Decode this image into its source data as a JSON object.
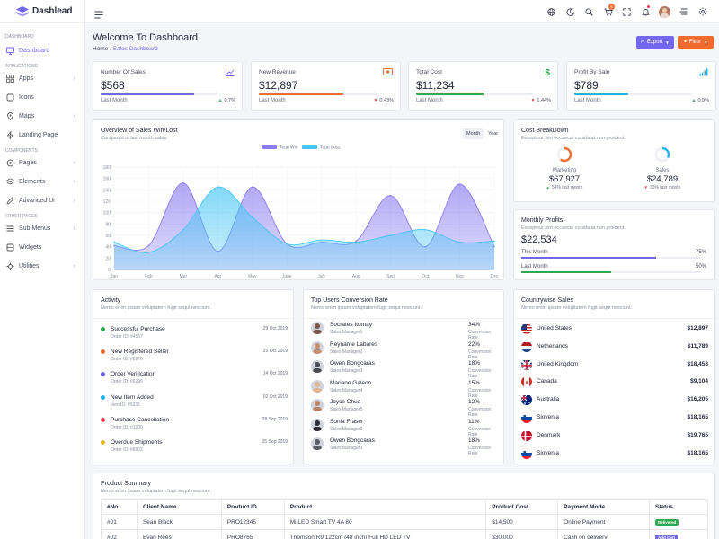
{
  "brand": {
    "name": "Dashlead"
  },
  "sidebar": {
    "sections": [
      "DASHBOARD",
      "APPLICATIONS",
      "COMPONENTS",
      "OTHER PAGES"
    ],
    "items": [
      {
        "label": "Dashboard",
        "icon": "monitor-icon"
      },
      {
        "label": "Apps",
        "icon": "grid-icon"
      },
      {
        "label": "Icons",
        "icon": "box-icon"
      },
      {
        "label": "Maps",
        "icon": "map-pin-icon"
      },
      {
        "label": "Landing Page",
        "icon": "lightning-icon"
      },
      {
        "label": "Pages",
        "icon": "settings-icon"
      },
      {
        "label": "Elements",
        "icon": "layers-icon"
      },
      {
        "label": "Advanced Ui",
        "icon": "edit-icon"
      },
      {
        "label": "Sub Menus",
        "icon": "list-icon"
      },
      {
        "label": "Widgets",
        "icon": "widget-icon"
      },
      {
        "label": "Utilities",
        "icon": "tool-icon"
      }
    ]
  },
  "topbar": {
    "cart_badge": "5"
  },
  "header": {
    "title": "Welcome To Dashboard",
    "crumb_home": "Home",
    "crumb_sep": "/",
    "crumb_current": "Sales Dashboard",
    "export_label": "Export",
    "filter_label": "Filter"
  },
  "kpis": [
    {
      "title": "Number Of Sales",
      "value": "$568",
      "progress": 0.8,
      "color": "#7367f0",
      "last": "Last Month",
      "change": "0.7%",
      "up": true,
      "icon": "line-chart-icon",
      "icon_color": "#7367f0"
    },
    {
      "title": "New Revenue",
      "value": "$12,897",
      "progress": 0.72,
      "color": "#f26b2e",
      "last": "Last Month",
      "change": "0.43%",
      "up": false,
      "icon": "money-icon",
      "icon_color": "#f26b2e"
    },
    {
      "title": "Total Cost",
      "value": "$11,234",
      "progress": 0.58,
      "color": "#2fa84f",
      "last": "Last Month",
      "change": "1.44%",
      "up": false,
      "icon": "dollar-icon",
      "icon_color": "#2fa84f"
    },
    {
      "title": "Profit By Sale",
      "value": "$789",
      "progress": 0.46,
      "color": "#22b3ed",
      "last": "Last Month",
      "change": "0.9%",
      "up": true,
      "icon": "signal-icon",
      "icon_color": "#22b3ed"
    }
  ],
  "overview": {
    "title": "Overview of Sales Win/Lost",
    "subtitle": "Compared to last month sales.",
    "tab_month": "Month",
    "tab_year": "Year"
  },
  "chart_data": {
    "type": "area",
    "title": "Overview of Sales Win/Lost",
    "categories": [
      "Jan",
      "Feb",
      "Mar",
      "Apr",
      "May",
      "June",
      "July",
      "Aug",
      "Sep",
      "Oct",
      "Nov",
      "Dec"
    ],
    "ylim": [
      0,
      180
    ],
    "yticks": [
      0,
      20,
      40,
      60,
      80,
      100,
      120,
      140,
      160,
      180
    ],
    "series": [
      {
        "name": "Total Win",
        "color": "#8b7cf0",
        "values": [
          42,
          42,
          152,
          32,
          145,
          45,
          48,
          50,
          130,
          40,
          150,
          40
        ]
      },
      {
        "name": "Total Loss",
        "color": "#47c6f5",
        "values": [
          48,
          30,
          70,
          145,
          92,
          45,
          52,
          48,
          60,
          70,
          48,
          50
        ]
      }
    ]
  },
  "cost": {
    "title": "Cost BreakDown",
    "subtitle": "Excepteur sint occaecat cupidatat non proident.",
    "items": [
      {
        "label": "Marketing",
        "value": "$67,927",
        "change": "54% last month",
        "pct": 0.6,
        "color": "#f26b2e"
      },
      {
        "label": "Sales",
        "value": "$24,789",
        "change": "33% last month",
        "pct": 0.33,
        "color": "#22b3ed"
      }
    ]
  },
  "profits": {
    "title": "Monthly Profits",
    "subtitle": "Excepteur sint occaecat cupidatat non proident.",
    "value": "$22,534",
    "rows": [
      {
        "label": "This Month",
        "pct": "75%",
        "frac": 0.75,
        "color": "#7367f0"
      },
      {
        "label": "Last Month",
        "pct": "50%",
        "frac": 0.5,
        "color": "#2fa84f"
      }
    ]
  },
  "activity": {
    "title": "Activity",
    "subtitle": "Nemo enim ipsam voluptatem fugit sequi nesciunt.",
    "items": [
      {
        "title": "Successful Purchase",
        "sub": "Order ID: #4567",
        "date": "29 Oct 2019",
        "color": "#2fa84f"
      },
      {
        "title": "New Registered Seller",
        "sub": "Order ID: #8976",
        "date": "25 Oct 2019",
        "color": "#f26b2e"
      },
      {
        "title": "Order Verification",
        "sub": "Order ID: #6290",
        "date": "14 Oct 2019",
        "color": "#7367f0"
      },
      {
        "title": "New Item Added",
        "sub": "Item ID: #0235",
        "date": "02 Oct 2019",
        "color": "#22b3ed"
      },
      {
        "title": "Purchase Cancellation",
        "sub": "Order ID: #1905",
        "date": "28 Sep 2019",
        "color": "#ef3e4a"
      },
      {
        "title": "Overdue Shipments",
        "sub": "Order ID: #8902",
        "date": "25 Sep 2019",
        "color": "#e6b821"
      }
    ]
  },
  "conversion": {
    "title": "Top Users Conversion Rate",
    "subtitle": "Nemo enim ipsam voluptatem fugit sequi nesciunt.",
    "items": [
      {
        "name": "Socrates Itumay",
        "role": "Sales Manager1",
        "rate": "34%",
        "label": "Conversion Rate"
      },
      {
        "name": "Reynante Labares",
        "role": "Sales Manager2",
        "rate": "22%",
        "label": "Conversion Rate"
      },
      {
        "name": "Owen Bongcaras",
        "role": "Sales Manager3",
        "rate": "18%",
        "label": "Conversion Rate"
      },
      {
        "name": "Mariane Galeon",
        "role": "Sales Manager4",
        "rate": "15%",
        "label": "Conversion Rate"
      },
      {
        "name": "Joyce Chua",
        "role": "Sales Manager5",
        "rate": "12%",
        "label": "Conversion Rate"
      },
      {
        "name": "Sonia Fraser",
        "role": "Sales Manager3",
        "rate": "11%",
        "label": "Conversion Rate"
      },
      {
        "name": "Owen Bongcaras",
        "role": "Sales Manager3",
        "rate": "18%",
        "label": "Conversion Rate"
      }
    ]
  },
  "countries": {
    "title": "Countrywise Sales",
    "subtitle": "Nemo enim ipsam voluptatem fugit sequi nesciunt.",
    "items": [
      {
        "name": "United States",
        "value": "$12,897",
        "flag": "us"
      },
      {
        "name": "Netherlands",
        "value": "$11,789",
        "flag": "nl"
      },
      {
        "name": "United Kingdom",
        "value": "$18,453",
        "flag": "uk"
      },
      {
        "name": "Canada",
        "value": "$9,104",
        "flag": "ca"
      },
      {
        "name": "Australia",
        "value": "$16,205",
        "flag": "au"
      },
      {
        "name": "Slovenia",
        "value": "$18,165",
        "flag": "si"
      },
      {
        "name": "Denmark",
        "value": "$19,765",
        "flag": "dk"
      },
      {
        "name": "Slovenia",
        "value": "$18,165",
        "flag": "si"
      }
    ]
  },
  "summary": {
    "title": "Product Summary",
    "subtitle": "Nemo enim ipsam voluptatem fugit sequi nesciunt.",
    "headers": [
      "#No",
      "Client Name",
      "Product ID",
      "Product",
      "Product Cost",
      "Payment Mode",
      "Status"
    ],
    "rows": [
      {
        "no": "#01",
        "client": "Sean Black",
        "pid": "PRO12345",
        "product": "Mi LED Smart TV 4A 80",
        "cost": "$14,500",
        "mode": "Online Payment",
        "status": "Delivered",
        "status_color": "#2fa84f"
      },
      {
        "no": "#02",
        "client": "Evan Rees",
        "pid": "PRO8765",
        "product": "Thomson R9 122cm (48 inch) Full HD LED TV",
        "cost": "$30,000",
        "mode": "Cash on delivery",
        "status": "Add Cart",
        "status_color": "#7367f0"
      }
    ]
  }
}
